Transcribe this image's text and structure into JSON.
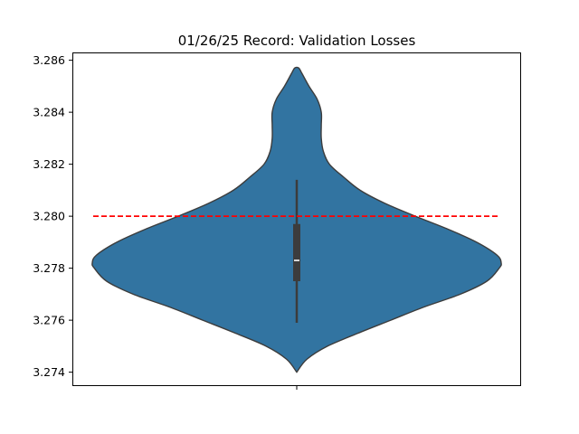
{
  "chart_data": {
    "type": "violin",
    "title": "01/26/25 Record: Validation Losses",
    "xlabel": "",
    "ylabel": "",
    "ylim": [
      3.2735,
      3.2863
    ],
    "yticks": [
      "3.274",
      "3.276",
      "3.278",
      "3.280",
      "3.282",
      "3.284",
      "3.286"
    ],
    "ytick_values": [
      3.274,
      3.276,
      3.278,
      3.28,
      3.282,
      3.284,
      3.286
    ],
    "violin_color": "#3274a1",
    "edge_color": "#3c3c3c",
    "density_profile": [
      [
        3.274,
        0.0
      ],
      [
        3.2745,
        0.05
      ],
      [
        3.275,
        0.15
      ],
      [
        3.2755,
        0.3
      ],
      [
        3.276,
        0.46
      ],
      [
        3.2765,
        0.62
      ],
      [
        3.277,
        0.8
      ],
      [
        3.2775,
        0.93
      ],
      [
        3.278,
        0.99
      ],
      [
        3.2782,
        1.0
      ],
      [
        3.2785,
        0.98
      ],
      [
        3.279,
        0.88
      ],
      [
        3.2795,
        0.74
      ],
      [
        3.28,
        0.58
      ],
      [
        3.2805,
        0.43
      ],
      [
        3.281,
        0.31
      ],
      [
        3.2815,
        0.23
      ],
      [
        3.282,
        0.16
      ],
      [
        3.2825,
        0.13
      ],
      [
        3.283,
        0.12
      ],
      [
        3.2835,
        0.12
      ],
      [
        3.284,
        0.12
      ],
      [
        3.2845,
        0.1
      ],
      [
        3.285,
        0.06
      ],
      [
        3.2855,
        0.025
      ],
      [
        3.2857,
        0.01
      ]
    ],
    "box": {
      "whisker_low": 3.2759,
      "q1": 3.2775,
      "median": 3.2783,
      "q3": 3.2797,
      "whisker_high": 3.2814
    },
    "reference_line": {
      "value": 3.28,
      "color": "#ff0000",
      "style": "dashed"
    }
  }
}
